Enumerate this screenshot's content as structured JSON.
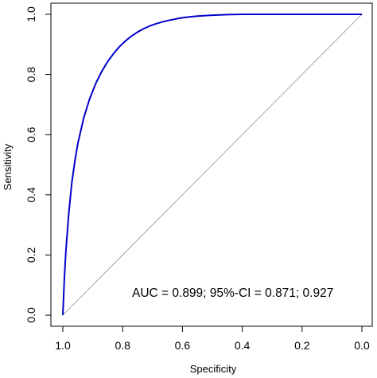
{
  "chart_data": {
    "type": "line",
    "title": "",
    "xlabel": "Specificity",
    "ylabel": "Sensitivity",
    "x_reversed": true,
    "xlim": [
      1.0,
      0.0
    ],
    "ylim": [
      0.0,
      1.0
    ],
    "x_ticks": [
      "1.0",
      "0.8",
      "0.6",
      "0.4",
      "0.2",
      "0.0"
    ],
    "y_ticks": [
      "0.0",
      "0.2",
      "0.4",
      "0.6",
      "0.8",
      "1.0"
    ],
    "grid": false,
    "legend": "none",
    "annotation": "AUC = 0.899;   95%-CI = 0.871; 0.927",
    "series": [
      {
        "color": "#0000cc",
        "x": [
          1.0,
          0.995,
          0.99,
          0.98,
          0.97,
          0.96,
          0.95,
          0.93,
          0.91,
          0.89,
          0.87,
          0.85,
          0.83,
          0.81,
          0.79,
          0.77,
          0.75,
          0.73,
          0.71,
          0.69,
          0.67,
          0.65,
          0.63,
          0.61,
          0.59,
          0.57,
          0.55,
          0.5,
          0.45,
          0.4,
          0.35,
          0.3,
          0.2,
          0.1,
          0.0
        ],
        "y": [
          0.0,
          0.12,
          0.21,
          0.34,
          0.44,
          0.51,
          0.57,
          0.656,
          0.72,
          0.77,
          0.81,
          0.843,
          0.87,
          0.893,
          0.912,
          0.928,
          0.941,
          0.952,
          0.961,
          0.968,
          0.974,
          0.979,
          0.983,
          0.987,
          0.99,
          0.992,
          0.994,
          0.997,
          0.999,
          1.0,
          1.0,
          1.0,
          1.0,
          1.0,
          1.0
        ]
      }
    ],
    "reference_line": {
      "color": "#aaaaaa",
      "x": [
        1.0,
        0.0
      ],
      "y": [
        0.0,
        1.0
      ]
    },
    "curve_color": "#0000cc",
    "ref_color": "#aaaaaa"
  }
}
